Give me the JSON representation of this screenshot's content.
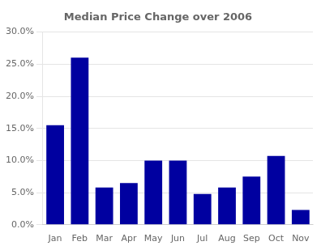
{
  "chart_data": {
    "type": "bar",
    "title": "Median Price Change over 2006",
    "categories": [
      "Jan",
      "Feb",
      "Mar",
      "Apr",
      "May",
      "Jun",
      "Jul",
      "Aug",
      "Sep",
      "Oct",
      "Nov"
    ],
    "values": [
      0.155,
      0.26,
      0.058,
      0.065,
      0.1,
      0.1,
      0.048,
      0.058,
      0.075,
      0.107,
      0.023
    ],
    "color": "#0000A0",
    "ylim": [
      0,
      0.3
    ],
    "yticks": [
      {
        "value": 0.0,
        "label": "0.0%"
      },
      {
        "value": 0.05,
        "label": "5.0%"
      },
      {
        "value": 0.1,
        "label": "10.0%"
      },
      {
        "value": 0.15,
        "label": "15.0%"
      },
      {
        "value": 0.2,
        "label": "20.0%"
      },
      {
        "value": 0.25,
        "label": "25.0%"
      },
      {
        "value": 0.3,
        "label": "30.0%"
      }
    ],
    "grid": true
  }
}
